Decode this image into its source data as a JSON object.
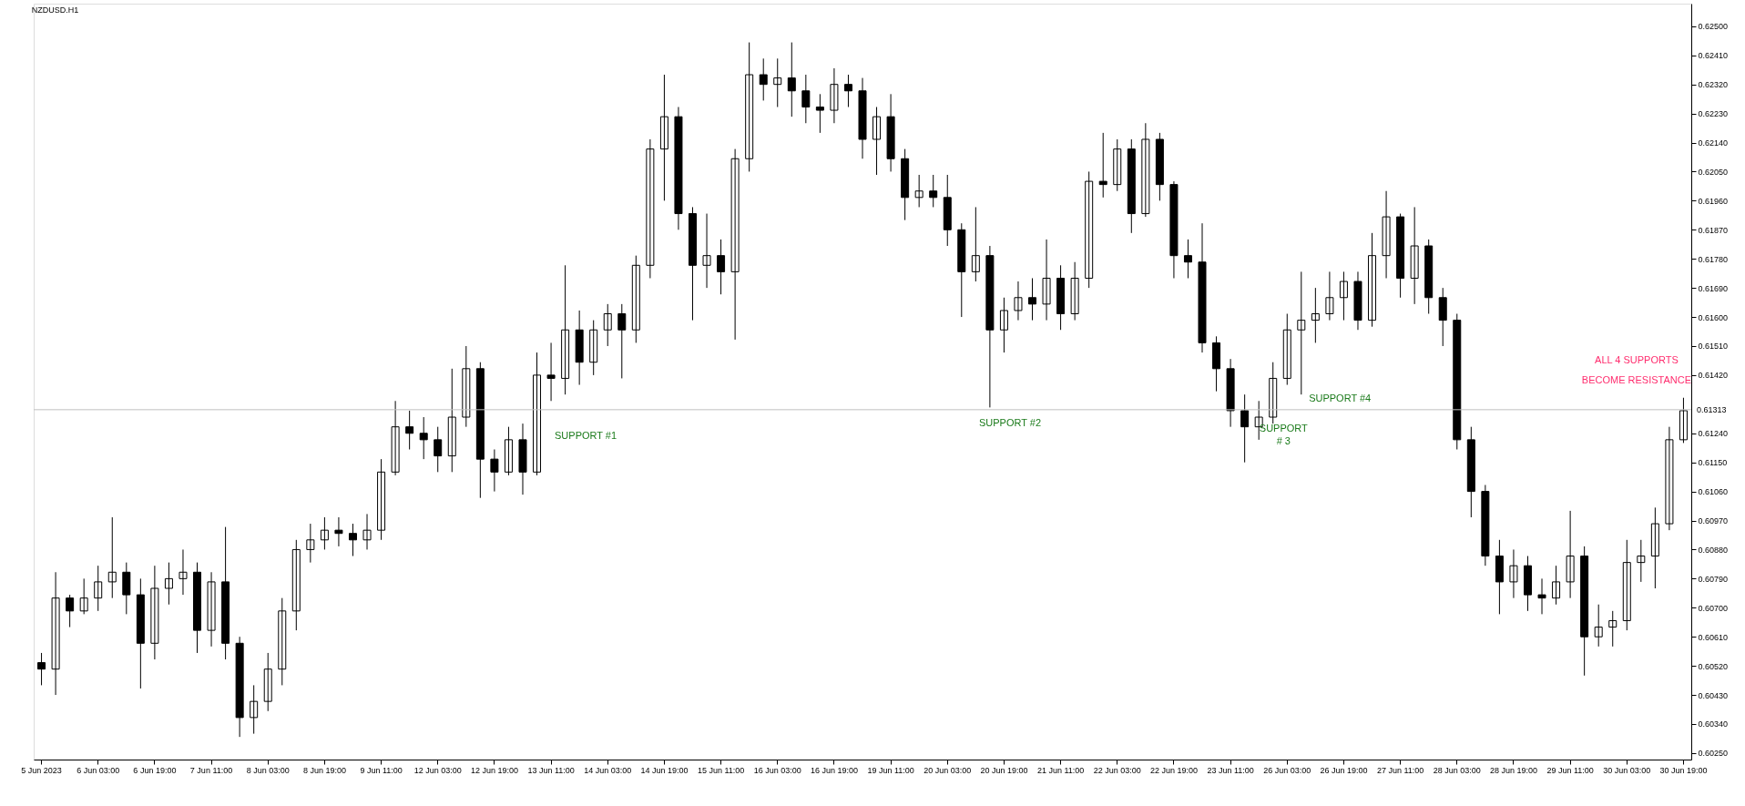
{
  "chart_data": {
    "type": "candlestick",
    "title": "NZDUSD.H1",
    "categories": [
      "5 Jun 2023",
      null,
      null,
      null,
      "6 Jun 03:00",
      null,
      null,
      null,
      "6 Jun 19:00",
      null,
      null,
      null,
      "7 Jun 11:00",
      null,
      null,
      null,
      "8 Jun 03:00",
      null,
      null,
      null,
      "8 Jun 19:00",
      null,
      null,
      null,
      "9 Jun 11:00",
      null,
      null,
      null,
      "12 Jun 03:00",
      null,
      null,
      null,
      "12 Jun 19:00",
      null,
      null,
      null,
      "13 Jun 11:00",
      null,
      null,
      null,
      "14 Jun 03:00",
      null,
      null,
      null,
      "14 Jun 19:00",
      null,
      null,
      null,
      "15 Jun 11:00",
      null,
      null,
      null,
      "16 Jun 03:00",
      null,
      null,
      null,
      "16 Jun 19:00",
      null,
      null,
      null,
      "19 Jun 11:00",
      null,
      null,
      null,
      "20 Jun 03:00",
      null,
      null,
      null,
      "20 Jun 19:00",
      null,
      null,
      null,
      "21 Jun 11:00",
      null,
      null,
      null,
      "22 Jun 03:00",
      null,
      null,
      null,
      "22 Jun 19:00",
      null,
      null,
      null,
      "23 Jun 11:00",
      null,
      null,
      null,
      "26 Jun 03:00",
      null,
      null,
      null,
      "26 Jun 19:00",
      null,
      null,
      null,
      "27 Jun 11:00",
      null,
      null,
      null,
      "28 Jun 03:00",
      null,
      null,
      null,
      "28 Jun 19:00",
      null,
      null,
      null,
      "29 Jun 11:00",
      null,
      null,
      null,
      "30 Jun 03:00",
      null,
      null,
      null,
      "30 Jun 19:00"
    ],
    "ohlc": [
      [
        0.6053,
        0.6056,
        0.6046,
        0.6051
      ],
      [
        0.6051,
        0.6081,
        0.6043,
        0.6073
      ],
      [
        0.6073,
        0.6074,
        0.6064,
        0.6069
      ],
      [
        0.6069,
        0.6079,
        0.6068,
        0.6073
      ],
      [
        0.6073,
        0.6083,
        0.6069,
        0.6078
      ],
      [
        0.6078,
        0.6098,
        0.6073,
        0.6081
      ],
      [
        0.6081,
        0.6084,
        0.6068,
        0.6074
      ],
      [
        0.6074,
        0.6079,
        0.6045,
        0.6059
      ],
      [
        0.6059,
        0.6083,
        0.6054,
        0.6076
      ],
      [
        0.6076,
        0.6084,
        0.6071,
        0.6079
      ],
      [
        0.6079,
        0.6088,
        0.6074,
        0.6081
      ],
      [
        0.6081,
        0.6084,
        0.6056,
        0.6063
      ],
      [
        0.6063,
        0.6081,
        0.6058,
        0.6078
      ],
      [
        0.6078,
        0.6095,
        0.6054,
        0.6059
      ],
      [
        0.6059,
        0.6061,
        0.603,
        0.6036
      ],
      [
        0.6036,
        0.6046,
        0.6031,
        0.6041
      ],
      [
        0.6041,
        0.6056,
        0.6038,
        0.6051
      ],
      [
        0.6051,
        0.6073,
        0.6046,
        0.6069
      ],
      [
        0.6069,
        0.6091,
        0.6063,
        0.6088
      ],
      [
        0.6088,
        0.6096,
        0.6084,
        0.6091
      ],
      [
        0.6091,
        0.6098,
        0.6088,
        0.6094
      ],
      [
        0.6094,
        0.6098,
        0.6089,
        0.6093
      ],
      [
        0.6093,
        0.6096,
        0.6086,
        0.6091
      ],
      [
        0.6091,
        0.6099,
        0.6088,
        0.6094
      ],
      [
        0.6094,
        0.6116,
        0.6091,
        0.6112
      ],
      [
        0.6112,
        0.6134,
        0.6111,
        0.6126
      ],
      [
        0.6126,
        0.6131,
        0.6119,
        0.6124
      ],
      [
        0.6124,
        0.6129,
        0.6116,
        0.6122
      ],
      [
        0.6122,
        0.6126,
        0.6112,
        0.6117
      ],
      [
        0.6117,
        0.6144,
        0.6112,
        0.6129
      ],
      [
        0.6129,
        0.6151,
        0.6126,
        0.6144
      ],
      [
        0.6144,
        0.6146,
        0.6104,
        0.6116
      ],
      [
        0.6116,
        0.6119,
        0.6106,
        0.6112
      ],
      [
        0.6112,
        0.6126,
        0.6111,
        0.6122
      ],
      [
        0.6122,
        0.6127,
        0.6105,
        0.6112
      ],
      [
        0.6112,
        0.6149,
        0.6111,
        0.6142
      ],
      [
        0.6142,
        0.6152,
        0.6134,
        0.6141
      ],
      [
        0.6141,
        0.6176,
        0.6136,
        0.6156
      ],
      [
        0.6156,
        0.6162,
        0.6139,
        0.6146
      ],
      [
        0.6146,
        0.6159,
        0.6142,
        0.6156
      ],
      [
        0.6156,
        0.6164,
        0.6151,
        0.6161
      ],
      [
        0.6161,
        0.6164,
        0.6141,
        0.6156
      ],
      [
        0.6156,
        0.6179,
        0.6152,
        0.6176
      ],
      [
        0.6176,
        0.6215,
        0.6172,
        0.6212
      ],
      [
        0.6212,
        0.6235,
        0.6196,
        0.6222
      ],
      [
        0.6222,
        0.6225,
        0.6187,
        0.6192
      ],
      [
        0.6192,
        0.6194,
        0.6159,
        0.6176
      ],
      [
        0.6176,
        0.6192,
        0.6169,
        0.6179
      ],
      [
        0.6179,
        0.6184,
        0.6167,
        0.6174
      ],
      [
        0.6174,
        0.6212,
        0.6153,
        0.6209
      ],
      [
        0.6209,
        0.6245,
        0.6205,
        0.6235
      ],
      [
        0.6235,
        0.624,
        0.6227,
        0.6232
      ],
      [
        0.6232,
        0.624,
        0.6225,
        0.6234
      ],
      [
        0.6234,
        0.6245,
        0.6222,
        0.623
      ],
      [
        0.623,
        0.6235,
        0.622,
        0.6225
      ],
      [
        0.6225,
        0.6229,
        0.6217,
        0.6224
      ],
      [
        0.6224,
        0.6237,
        0.622,
        0.6232
      ],
      [
        0.6232,
        0.6235,
        0.6225,
        0.623
      ],
      [
        0.623,
        0.6234,
        0.6209,
        0.6215
      ],
      [
        0.6215,
        0.6225,
        0.6204,
        0.6222
      ],
      [
        0.6222,
        0.6229,
        0.6205,
        0.6209
      ],
      [
        0.6209,
        0.6212,
        0.619,
        0.6197
      ],
      [
        0.6197,
        0.6204,
        0.6194,
        0.6199
      ],
      [
        0.6199,
        0.6204,
        0.6194,
        0.6197
      ],
      [
        0.6197,
        0.6204,
        0.6182,
        0.6187
      ],
      [
        0.6187,
        0.6189,
        0.616,
        0.6174
      ],
      [
        0.6174,
        0.6194,
        0.6171,
        0.6179
      ],
      [
        0.6179,
        0.6182,
        0.6132,
        0.6156
      ],
      [
        0.6156,
        0.6166,
        0.6149,
        0.6162
      ],
      [
        0.6162,
        0.6171,
        0.6159,
        0.6166
      ],
      [
        0.6166,
        0.6172,
        0.6159,
        0.6164
      ],
      [
        0.6164,
        0.6184,
        0.6159,
        0.6172
      ],
      [
        0.6172,
        0.6176,
        0.6156,
        0.6161
      ],
      [
        0.6161,
        0.6177,
        0.6159,
        0.6172
      ],
      [
        0.6172,
        0.6205,
        0.6169,
        0.6202
      ],
      [
        0.6202,
        0.6217,
        0.6197,
        0.6201
      ],
      [
        0.6201,
        0.6215,
        0.6199,
        0.6212
      ],
      [
        0.6212,
        0.6215,
        0.6186,
        0.6192
      ],
      [
        0.6192,
        0.622,
        0.6191,
        0.6215
      ],
      [
        0.6215,
        0.6217,
        0.6196,
        0.6201
      ],
      [
        0.6201,
        0.6202,
        0.6172,
        0.6179
      ],
      [
        0.6179,
        0.6184,
        0.6172,
        0.6177
      ],
      [
        0.6177,
        0.6189,
        0.6149,
        0.6152
      ],
      [
        0.6152,
        0.6154,
        0.6137,
        0.6144
      ],
      [
        0.6144,
        0.6147,
        0.6126,
        0.6131
      ],
      [
        0.6131,
        0.6136,
        0.6115,
        0.6126
      ],
      [
        0.6126,
        0.6134,
        0.6122,
        0.6129
      ],
      [
        0.6129,
        0.6146,
        0.6127,
        0.6141
      ],
      [
        0.6141,
        0.6161,
        0.6139,
        0.6156
      ],
      [
        0.6156,
        0.6174,
        0.6136,
        0.6159
      ],
      [
        0.6159,
        0.6169,
        0.6152,
        0.6161
      ],
      [
        0.6161,
        0.6174,
        0.6159,
        0.6166
      ],
      [
        0.6166,
        0.6174,
        0.6159,
        0.6171
      ],
      [
        0.6171,
        0.6174,
        0.6156,
        0.6159
      ],
      [
        0.6159,
        0.6186,
        0.6157,
        0.6179
      ],
      [
        0.6179,
        0.6199,
        0.6172,
        0.6191
      ],
      [
        0.6191,
        0.6192,
        0.6166,
        0.6172
      ],
      [
        0.6172,
        0.6194,
        0.6164,
        0.6182
      ],
      [
        0.6182,
        0.6184,
        0.6161,
        0.6166
      ],
      [
        0.6166,
        0.6169,
        0.6151,
        0.6159
      ],
      [
        0.6159,
        0.6161,
        0.6119,
        0.6122
      ],
      [
        0.6122,
        0.6126,
        0.6098,
        0.6106
      ],
      [
        0.6106,
        0.6108,
        0.6083,
        0.6086
      ],
      [
        0.6086,
        0.6091,
        0.6068,
        0.6078
      ],
      [
        0.6078,
        0.6088,
        0.6073,
        0.6083
      ],
      [
        0.6083,
        0.6086,
        0.6069,
        0.6074
      ],
      [
        0.6074,
        0.6079,
        0.6068,
        0.6073
      ],
      [
        0.6073,
        0.6083,
        0.6071,
        0.6078
      ],
      [
        0.6078,
        0.61,
        0.6073,
        0.6086
      ],
      [
        0.6086,
        0.6089,
        0.6049,
        0.6061
      ],
      [
        0.6061,
        0.6071,
        0.6058,
        0.6064
      ],
      [
        0.6064,
        0.6069,
        0.6058,
        0.6066
      ],
      [
        0.6066,
        0.6091,
        0.6063,
        0.6084
      ],
      [
        0.6084,
        0.6091,
        0.6078,
        0.6086
      ],
      [
        0.6086,
        0.6101,
        0.6076,
        0.6096
      ],
      [
        0.6096,
        0.6126,
        0.6094,
        0.6122
      ],
      [
        0.6122,
        0.6135,
        0.6121,
        0.6131
      ]
    ],
    "ylim": [
      0.6023,
      0.6257
    ],
    "yticks": [
      {
        "value": 0.6025,
        "label": "0.60250"
      },
      {
        "value": 0.6034,
        "label": "0.60340"
      },
      {
        "value": 0.6043,
        "label": "0.60430"
      },
      {
        "value": 0.6052,
        "label": "0.60520"
      },
      {
        "value": 0.6061,
        "label": "0.60610"
      },
      {
        "value": 0.607,
        "label": "0.60700"
      },
      {
        "value": 0.6079,
        "label": "0.60790"
      },
      {
        "value": 0.6088,
        "label": "0.60880"
      },
      {
        "value": 0.6097,
        "label": "0.60970"
      },
      {
        "value": 0.6106,
        "label": "0.61060"
      },
      {
        "value": 0.6115,
        "label": "0.61150"
      },
      {
        "value": 0.6124,
        "label": "0.61240"
      },
      {
        "value": 0.6142,
        "label": "0.61420"
      },
      {
        "value": 0.6151,
        "label": "0.61510"
      },
      {
        "value": 0.616,
        "label": "0.61600"
      },
      {
        "value": 0.6169,
        "label": "0.61690"
      },
      {
        "value": 0.6178,
        "label": "0.61780"
      },
      {
        "value": 0.6187,
        "label": "0.61870"
      },
      {
        "value": 0.6196,
        "label": "0.61960"
      },
      {
        "value": 0.6205,
        "label": "0.62050"
      },
      {
        "value": 0.6214,
        "label": "0.62140"
      },
      {
        "value": 0.6223,
        "label": "0.62230"
      },
      {
        "value": 0.6232,
        "label": "0.62320"
      },
      {
        "value": 0.6241,
        "label": "0.62410"
      },
      {
        "value": 0.625,
        "label": "0.62500"
      }
    ],
    "ref_lines": [
      {
        "axis": "y",
        "value": 0.61313,
        "label": "0.61313",
        "color": "#c0c0c0"
      }
    ],
    "annotations": [
      "SUPPORT #1",
      "SUPPORT #2",
      "SUPPORT\n# 3",
      "SUPPORT #4",
      "ALL 4 SUPPORTS\nBECOME RESISTANCE"
    ],
    "grid": false
  }
}
